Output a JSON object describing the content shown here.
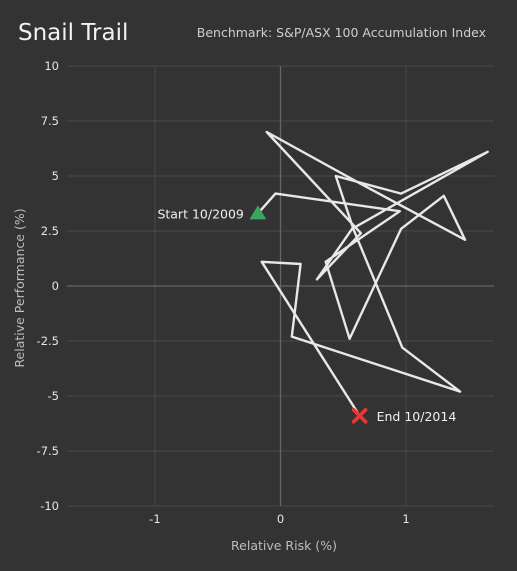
{
  "chart_data": {
    "type": "line",
    "title": "Snail Trail",
    "subtitle": "Benchmark: S&P/ASX 100 Accumulation Index",
    "xlabel": "Relative Risk (%)",
    "ylabel": "Relative Performance (%)",
    "xlim": [
      -1.7,
      1.7
    ],
    "ylim": [
      -10,
      10
    ],
    "x_ticks": [
      -1,
      0,
      1
    ],
    "y_ticks": [
      10,
      7.5,
      5,
      2.5,
      0,
      -2.5,
      -5,
      -7.5,
      -10
    ],
    "x_tick_labels": [
      "-1",
      "0",
      "1"
    ],
    "y_tick_labels": [
      "10",
      "7.5",
      "5",
      "2.5",
      "0",
      "-2.5",
      "-5",
      "-7.5",
      "-10"
    ],
    "grid": true,
    "series": [
      {
        "x": [
          -0.18,
          -0.04,
          0.95,
          0.36,
          0.55,
          0.96,
          1.3,
          1.47,
          0.62,
          -0.11,
          0.64,
          0.29,
          0.57,
          1.65,
          0.96,
          0.44,
          0.58,
          0.97,
          1.43,
          0.09,
          0.16,
          -0.15,
          0.63
        ],
        "y": [
          3.3,
          4.2,
          3.4,
          1.1,
          -2.4,
          2.6,
          4.1,
          2.1,
          4.7,
          7.0,
          2.4,
          0.3,
          2.6,
          6.1,
          4.2,
          5.0,
          2.6,
          -2.8,
          -4.8,
          -2.3,
          1.0,
          1.1,
          -5.9
        ]
      }
    ],
    "annotations": {
      "start": {
        "text": "Start 10/2009",
        "x": -0.18,
        "y": 3.3,
        "color": "#3aa55d"
      },
      "end": {
        "text": "End 10/2014",
        "x": 0.63,
        "y": -5.9,
        "color": "#e53935"
      }
    }
  }
}
